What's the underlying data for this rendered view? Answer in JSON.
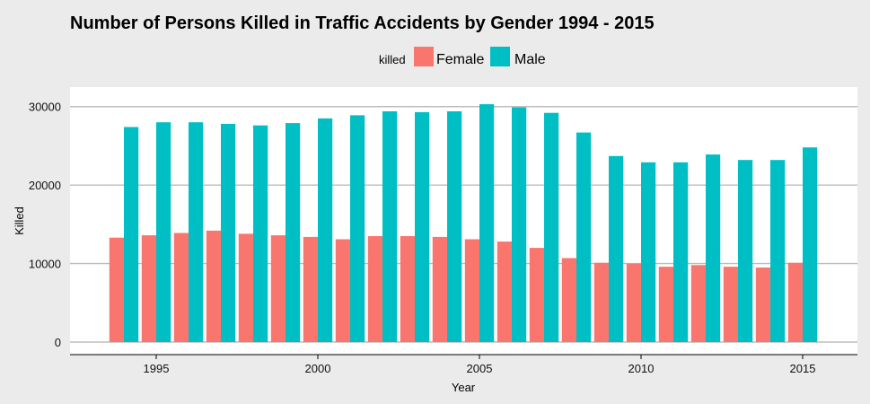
{
  "chart_data": {
    "type": "bar",
    "title": "Number of Persons Killed in Traffic Accidents by Gender 1994 - 2015",
    "xlabel": "Year",
    "ylabel": "Killed",
    "legend_title": "killed",
    "legend_placement": "top",
    "grid": "horizontal",
    "xlim": [
      1993,
      2016
    ],
    "ylim": [
      0,
      31000
    ],
    "x_ticks": [
      1995,
      2000,
      2005,
      2010,
      2015
    ],
    "y_ticks": [
      0,
      10000,
      20000,
      30000
    ],
    "x": [
      1994,
      1995,
      1996,
      1997,
      1998,
      1999,
      2000,
      2001,
      2002,
      2003,
      2004,
      2005,
      2006,
      2007,
      2008,
      2009,
      2010,
      2011,
      2012,
      2013,
      2014,
      2015
    ],
    "series": [
      {
        "name": "Female",
        "color": "#f8766d",
        "values": [
          13300,
          13600,
          13900,
          14200,
          13800,
          13600,
          13400,
          13100,
          13500,
          13500,
          13400,
          13100,
          12800,
          12000,
          10700,
          10100,
          10000,
          9600,
          9800,
          9600,
          9500,
          10100
        ]
      },
      {
        "name": "Male",
        "color": "#00bfc4",
        "values": [
          27400,
          28000,
          28000,
          27800,
          27600,
          27900,
          28500,
          28900,
          29400,
          29300,
          29400,
          30300,
          29900,
          29200,
          26700,
          23700,
          22900,
          22900,
          23900,
          23200,
          23200,
          24800
        ]
      }
    ]
  }
}
